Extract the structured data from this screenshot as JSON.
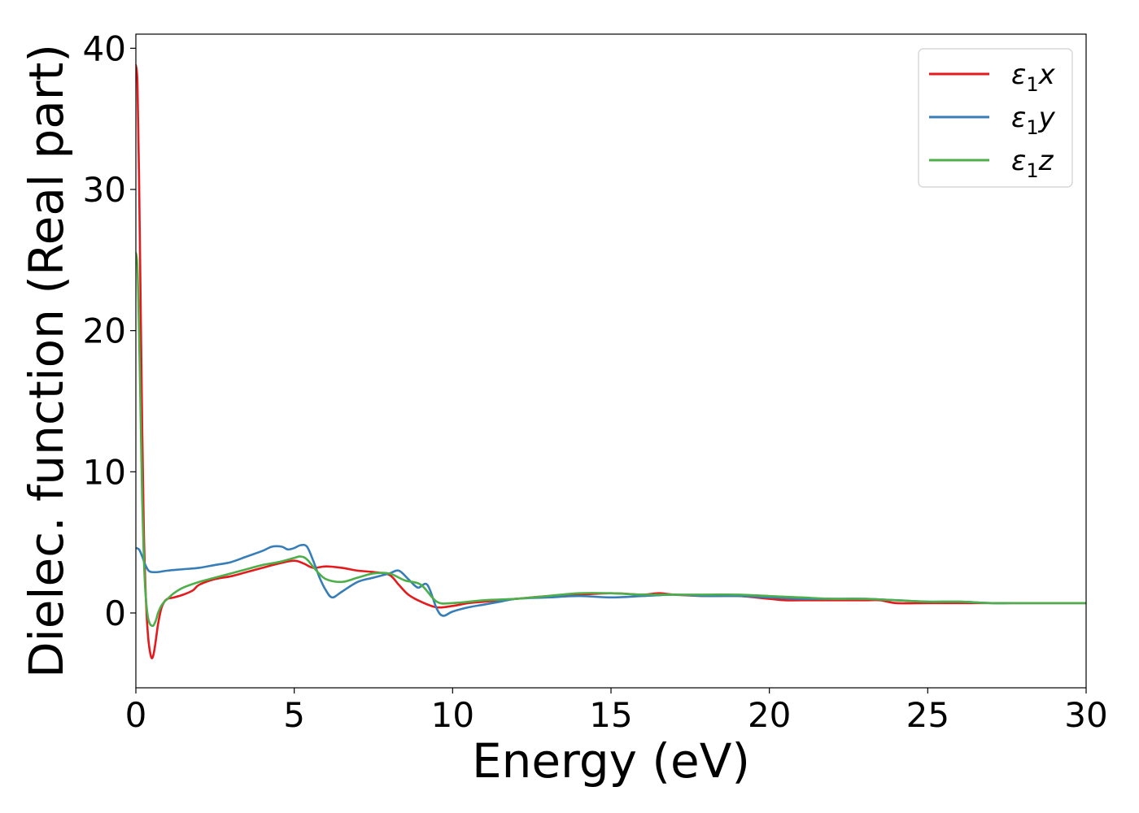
{
  "chart_data": {
    "type": "line",
    "title": "",
    "xlabel": "Energy (eV)",
    "ylabel": "Dielec. function (Real part)",
    "xlim": [
      0,
      30
    ],
    "ylim": [
      -5.3,
      41
    ],
    "x_ticks": [
      0,
      5,
      10,
      15,
      20,
      25,
      30
    ],
    "y_ticks": [
      0,
      10,
      20,
      30,
      40
    ],
    "grid": false,
    "legend_position": "top-right",
    "series": [
      {
        "name": "ε₁x",
        "legend_main": "ε",
        "legend_sub": "1",
        "legend_suffix": "x",
        "color": "#e41a1c",
        "x": [
          0,
          0.05,
          0.1,
          0.15,
          0.2,
          0.25,
          0.3,
          0.35,
          0.4,
          0.45,
          0.5,
          0.55,
          0.6,
          0.65,
          0.7,
          0.8,
          0.9,
          1.0,
          1.2,
          1.5,
          1.8,
          2.0,
          2.5,
          3.0,
          3.5,
          4.0,
          4.5,
          5.0,
          5.3,
          5.6,
          6.0,
          6.5,
          7.0,
          7.5,
          8.0,
          8.3,
          8.6,
          9.0,
          9.5,
          10.0,
          10.5,
          11.0,
          12.0,
          13.0,
          14.0,
          15.0,
          16.0,
          16.5,
          17.0,
          18.0,
          19.0,
          20.0,
          20.5,
          21.0,
          22.0,
          23.0,
          23.5,
          24.0,
          25.0,
          26.0,
          27.0,
          28.0,
          29.0,
          30.0
        ],
        "values": [
          38.8,
          37.5,
          31,
          22,
          13,
          6,
          2,
          -0.5,
          -2,
          -2.8,
          -3.2,
          -3.0,
          -2.4,
          -1.6,
          -0.8,
          0.3,
          0.8,
          1.0,
          1.1,
          1.3,
          1.6,
          2.0,
          2.4,
          2.6,
          2.9,
          3.2,
          3.5,
          3.7,
          3.5,
          3.2,
          3.3,
          3.2,
          3.0,
          2.9,
          2.7,
          2.0,
          1.3,
          0.8,
          0.4,
          0.5,
          0.7,
          0.8,
          1.0,
          1.2,
          1.3,
          1.4,
          1.3,
          1.4,
          1.3,
          1.2,
          1.2,
          1.0,
          0.9,
          0.9,
          0.9,
          0.9,
          0.9,
          0.7,
          0.7,
          0.7,
          0.7,
          0.7,
          0.7,
          0.7
        ]
      },
      {
        "name": "ε₁y",
        "legend_main": "ε",
        "legend_sub": "1",
        "legend_suffix": "y",
        "color": "#377eb8",
        "x": [
          0,
          0.1,
          0.2,
          0.3,
          0.4,
          0.5,
          0.7,
          1.0,
          1.5,
          2.0,
          2.5,
          3.0,
          3.5,
          4.0,
          4.3,
          4.6,
          4.8,
          5.0,
          5.2,
          5.4,
          5.6,
          5.8,
          6.0,
          6.2,
          6.5,
          7.0,
          7.5,
          8.0,
          8.3,
          8.6,
          8.9,
          9.2,
          9.5,
          9.7,
          10.0,
          10.5,
          11.0,
          11.5,
          12.0,
          13.0,
          14.0,
          15.0,
          16.0,
          17.0,
          18.0,
          19.0,
          20.0,
          21.0,
          22.0,
          23.0,
          24.0,
          25.0,
          26.0,
          27.0,
          28.0,
          29.0,
          30.0
        ],
        "values": [
          4.6,
          4.5,
          4.0,
          3.4,
          3.0,
          2.9,
          2.9,
          3.0,
          3.1,
          3.2,
          3.4,
          3.6,
          4.0,
          4.4,
          4.7,
          4.7,
          4.5,
          4.6,
          4.8,
          4.7,
          3.7,
          2.5,
          1.6,
          1.1,
          1.5,
          2.2,
          2.5,
          2.8,
          3.0,
          2.4,
          1.8,
          2.0,
          0.3,
          -0.2,
          0.1,
          0.4,
          0.6,
          0.8,
          1.0,
          1.1,
          1.2,
          1.1,
          1.2,
          1.3,
          1.2,
          1.2,
          1.1,
          1.0,
          1.0,
          1.0,
          0.9,
          0.8,
          0.8,
          0.7,
          0.7,
          0.7,
          0.7
        ]
      },
      {
        "name": "ε₁z",
        "legend_main": "ε",
        "legend_sub": "1",
        "legend_suffix": "z",
        "color": "#4daf4a",
        "x": [
          0,
          0.05,
          0.1,
          0.15,
          0.2,
          0.25,
          0.3,
          0.35,
          0.4,
          0.45,
          0.5,
          0.55,
          0.6,
          0.65,
          0.7,
          0.8,
          0.9,
          1.0,
          1.2,
          1.5,
          2.0,
          2.5,
          3.0,
          3.5,
          4.0,
          4.5,
          5.0,
          5.2,
          5.4,
          5.7,
          6.0,
          6.5,
          7.0,
          7.5,
          8.0,
          8.5,
          9.0,
          9.5,
          10.0,
          11.0,
          12.0,
          13.0,
          14.0,
          15.0,
          16.0,
          17.0,
          18.0,
          19.0,
          20.0,
          21.0,
          22.0,
          23.0,
          24.0,
          25.0,
          26.0,
          27.0,
          28.0,
          29.0,
          30.0
        ],
        "values": [
          25.5,
          24.5,
          20,
          14,
          8,
          4,
          1.5,
          0.2,
          -0.5,
          -0.8,
          -0.9,
          -0.9,
          -0.7,
          -0.4,
          0,
          0.5,
          0.8,
          1.0,
          1.4,
          1.8,
          2.2,
          2.5,
          2.8,
          3.1,
          3.4,
          3.6,
          3.9,
          4.0,
          3.8,
          3.0,
          2.4,
          2.2,
          2.5,
          2.8,
          2.8,
          2.3,
          2.0,
          0.8,
          0.7,
          0.9,
          1.0,
          1.2,
          1.4,
          1.4,
          1.3,
          1.3,
          1.3,
          1.3,
          1.2,
          1.1,
          1.0,
          1.0,
          0.9,
          0.8,
          0.8,
          0.7,
          0.7,
          0.7,
          0.7
        ]
      }
    ]
  }
}
